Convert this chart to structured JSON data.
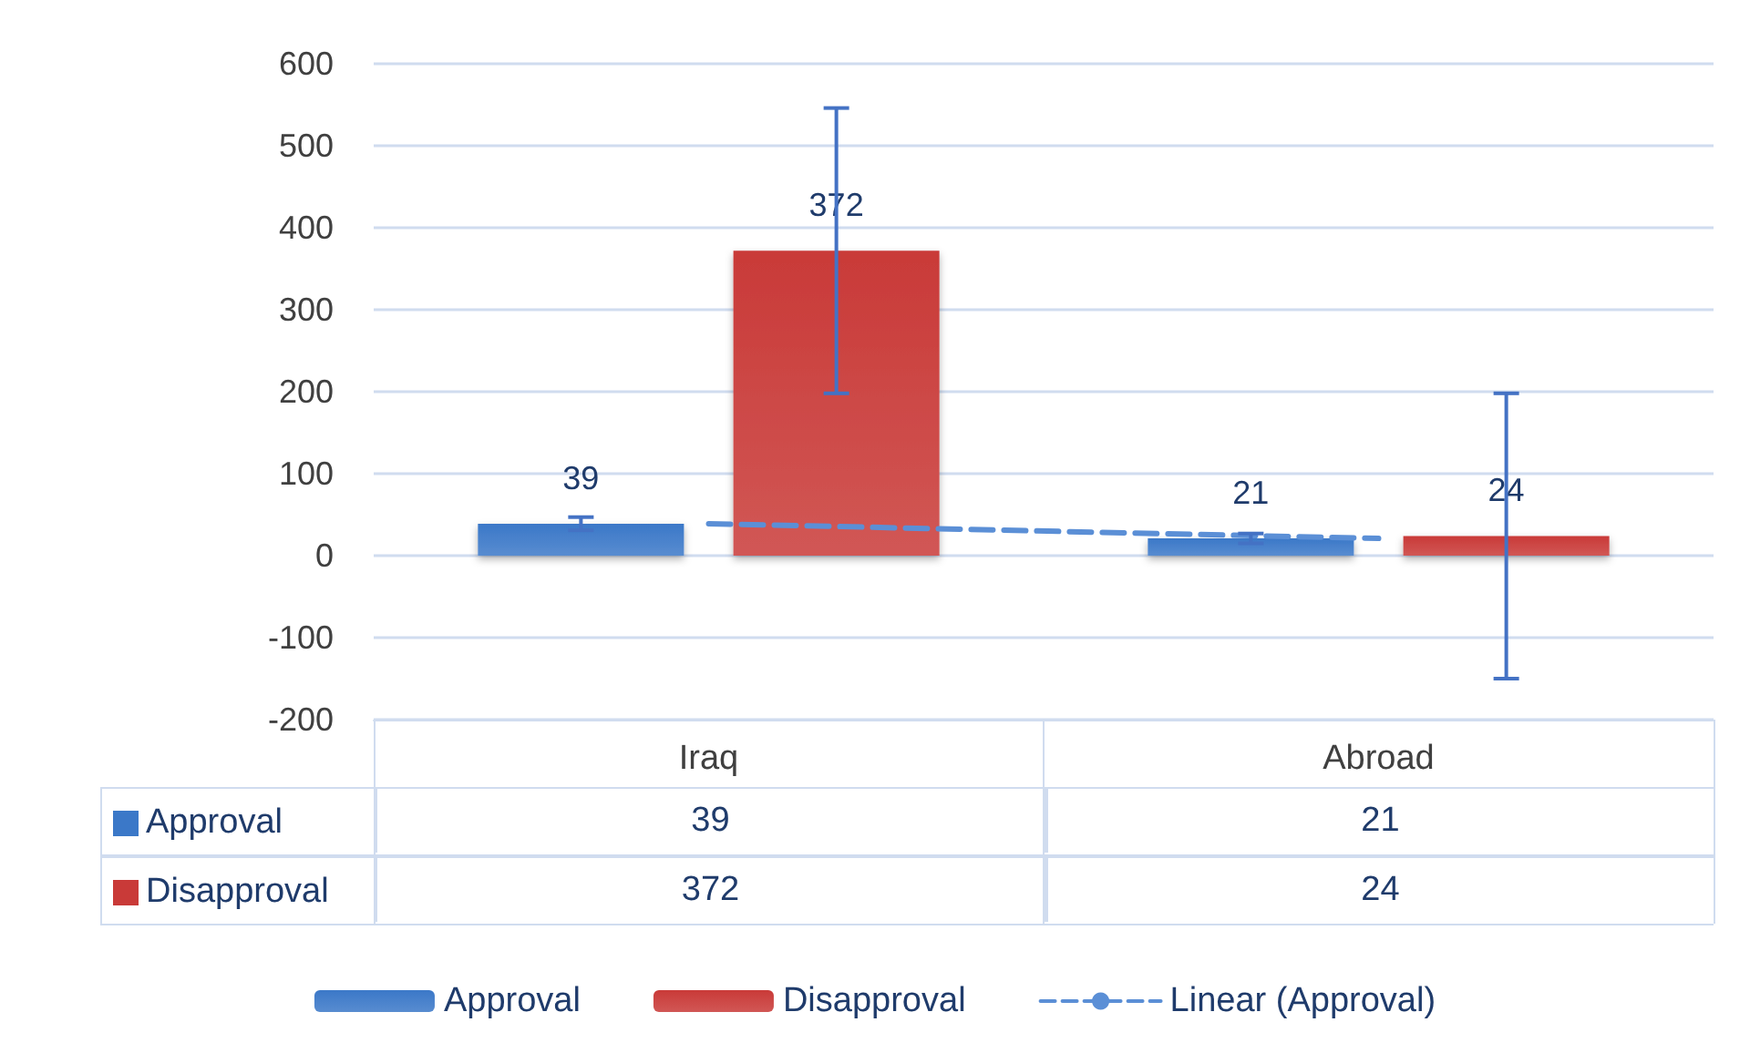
{
  "chart_data": {
    "type": "bar",
    "categories": [
      "Iraq",
      "Abroad"
    ],
    "series": [
      {
        "name": "Approval",
        "color": "#3b78c8",
        "values": [
          39,
          21
        ],
        "errors": [
          8,
          6
        ],
        "value_labels": [
          "39",
          "21"
        ]
      },
      {
        "name": "Disapproval",
        "color": "#c93a38",
        "values": [
          372,
          24
        ],
        "errors": [
          174,
          174
        ],
        "value_labels": [
          "372",
          "24"
        ]
      },
      {
        "name": "Linear (Approval)",
        "type": "line",
        "color": "#5b8fd6",
        "values": [
          39,
          21
        ],
        "line_style": "dashed",
        "marker": "none"
      }
    ],
    "ylim": [
      -200,
      600
    ],
    "yticks": [
      -200,
      -100,
      0,
      100,
      200,
      300,
      400,
      500,
      600
    ],
    "grid": "y",
    "legend": "bottom"
  }
}
